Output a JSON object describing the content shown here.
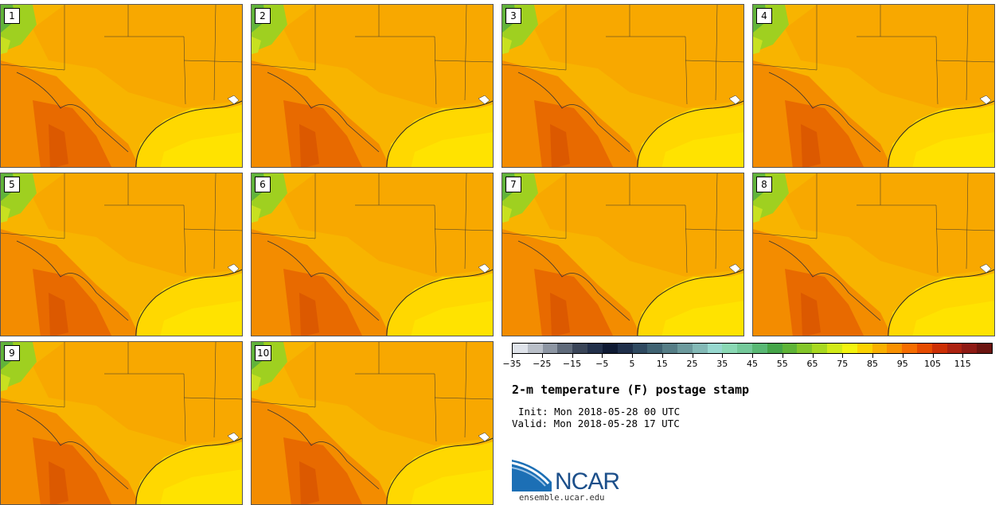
{
  "title": "2-m temperature (F) postage stamp",
  "init": "Init: Mon 2018-05-28 00 UTC",
  "valid": "Valid: Mon 2018-05-28 17 UTC",
  "members": [
    "1",
    "2",
    "3",
    "4",
    "5",
    "6",
    "7",
    "8",
    "9",
    "10"
  ],
  "colorbar": {
    "labels": [
      "−35",
      "−25",
      "−15",
      "−5",
      "5",
      "15",
      "25",
      "35",
      "45",
      "55",
      "65",
      "75",
      "85",
      "95",
      "105",
      "115"
    ],
    "colors": [
      "#dfe3ea",
      "#b9bfc8",
      "#8d96a3",
      "#5f6a7a",
      "#3a4558",
      "#22304a",
      "#0f1a33",
      "#1f2f4a",
      "#2f4960",
      "#3f6272",
      "#557d86",
      "#6c9a9d",
      "#83b9b6",
      "#97d8cf",
      "#8ad8b4",
      "#74c99a",
      "#59b874",
      "#45a548",
      "#5fb437",
      "#84c62a",
      "#a8d820",
      "#d2ea18",
      "#f3f30f",
      "#fbd200",
      "#f9b000",
      "#f99100",
      "#f66d00",
      "#e64b00",
      "#cc2f05",
      "#ac2210",
      "#8e1a14",
      "#6b1410"
    ]
  },
  "logo": {
    "text": "NCAR",
    "url": "ensemble.ucar.edu",
    "brand_color": "#1c4f8a"
  },
  "map_colors": {
    "gulf": "#ffd800",
    "gulf_warm": "#ffe800",
    "land": "#f8b400",
    "hot": "#f38c00",
    "hotter": "#e86a00",
    "cool": "#9fd020",
    "cooler": "#61b33a"
  }
}
